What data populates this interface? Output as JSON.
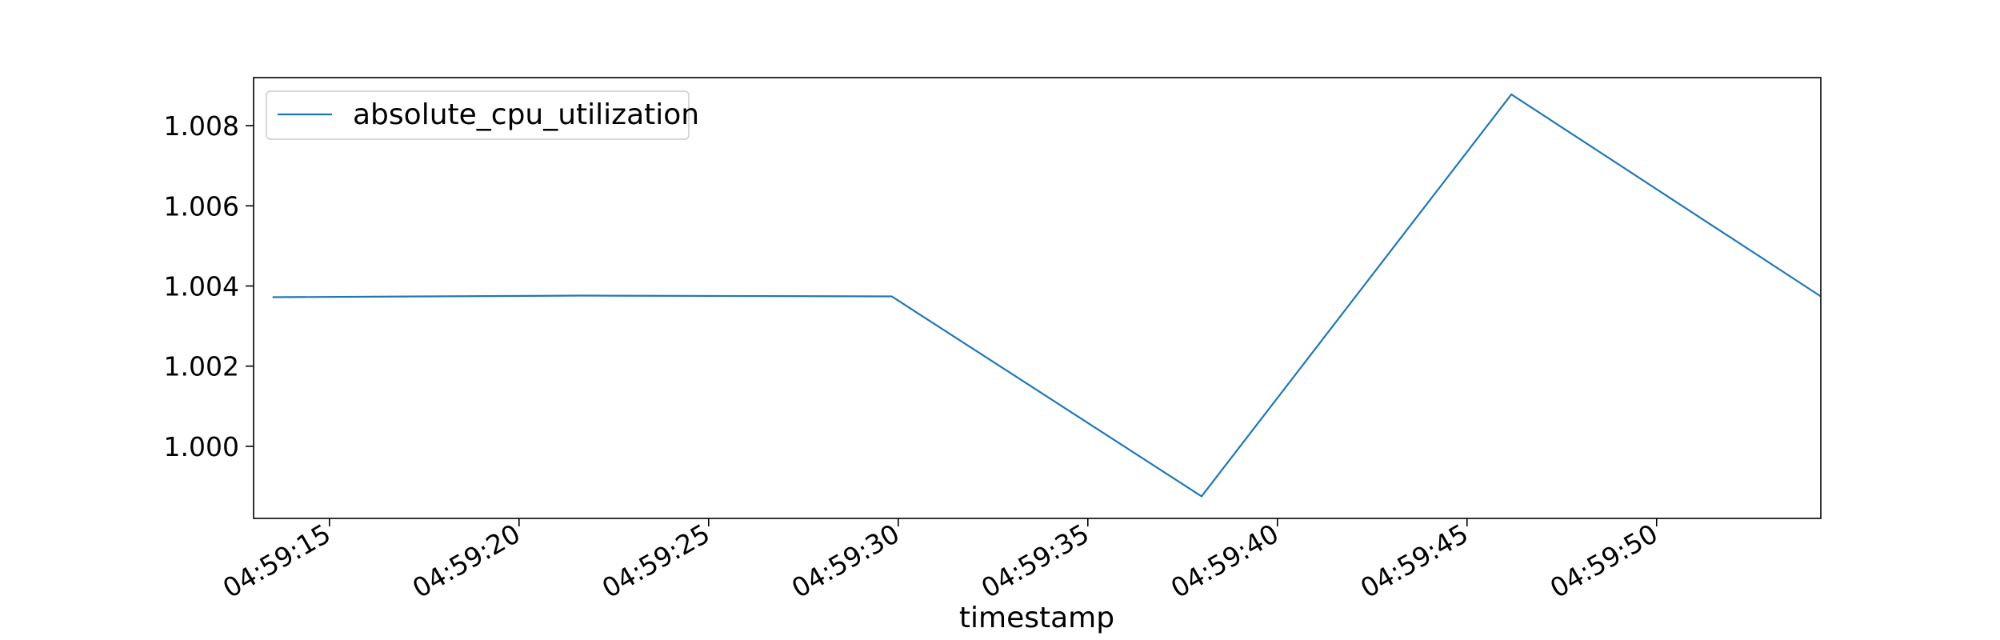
{
  "chart_data": {
    "type": "line",
    "title": "",
    "xlabel": "timestamp",
    "ylabel": "",
    "series": [
      {
        "name": "absolute_cpu_utilization",
        "color": "#1f77b4",
        "x": [
          "04:59:13.5",
          "04:59:21.67",
          "04:59:29.83",
          "04:59:38.0",
          "04:59:46.17",
          "04:59:54.33"
        ],
        "x_seconds": [
          13.5,
          21.67,
          29.83,
          38.0,
          46.17,
          54.33
        ],
        "values": [
          1.00372,
          1.00376,
          1.00374,
          0.99875,
          1.00878,
          1.00374
        ]
      }
    ],
    "xlim": [
      13.0,
      54.33
    ],
    "ylim": [
      0.9982,
      1.0092
    ],
    "x_ticks": [
      {
        "value": 15,
        "label": "04:59:15"
      },
      {
        "value": 20,
        "label": "04:59:20"
      },
      {
        "value": 25,
        "label": "04:59:25"
      },
      {
        "value": 30,
        "label": "04:59:30"
      },
      {
        "value": 35,
        "label": "04:59:35"
      },
      {
        "value": 40,
        "label": "04:59:40"
      },
      {
        "value": 45,
        "label": "04:59:45"
      },
      {
        "value": 50,
        "label": "04:59:50"
      }
    ],
    "y_ticks": [
      {
        "value": 1.0,
        "label": "1.000"
      },
      {
        "value": 1.002,
        "label": "1.002"
      },
      {
        "value": 1.004,
        "label": "1.004"
      },
      {
        "value": 1.006,
        "label": "1.006"
      },
      {
        "value": 1.008,
        "label": "1.008"
      }
    ],
    "grid": false,
    "legend_position": "top-left"
  }
}
